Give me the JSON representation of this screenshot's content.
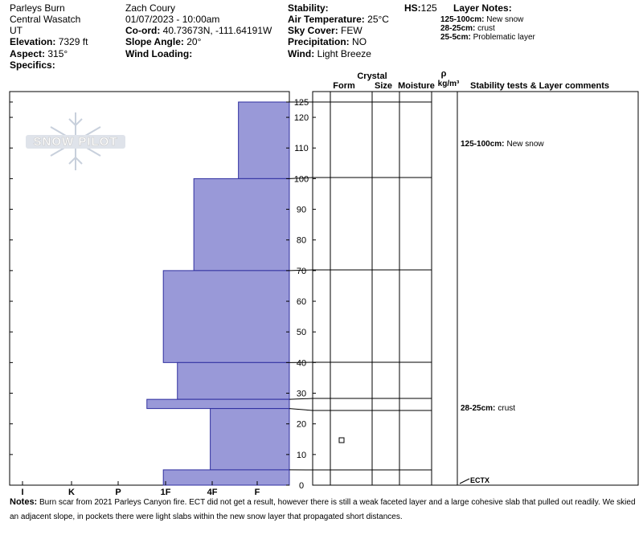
{
  "header": {
    "col1": {
      "site": "Parleys Burn",
      "range": "Central Wasatch",
      "state": "UT",
      "elevation_label": "Elevation:",
      "elevation_value": "7329 ft",
      "aspect_label": "Aspect:",
      "aspect_value": "315°",
      "specifics_label": "Specifics:"
    },
    "col2": {
      "observer": "Zach Coury",
      "datetime": "01/07/2023 - 10:00am",
      "coord_label": "Co-ord:",
      "coord_value": "40.73673N, -111.64191W",
      "slope_label": "Slope Angle:",
      "slope_value": "20°",
      "wind_loading_label": "Wind Loading:"
    },
    "col3": {
      "stability_label": "Stability:",
      "air_temp_label": "Air Temperature:",
      "air_temp_value": "25°C",
      "sky_label": "Sky Cover:",
      "sky_value": "FEW",
      "precip_label": "Precipitation:",
      "precip_value": "NO",
      "wind_label": "Wind:",
      "wind_value": "Light Breeze"
    },
    "hs_label": "HS:",
    "hs_value": "125",
    "layer_notes_title": "Layer Notes:",
    "layer_notes": [
      {
        "range": "125-100cm:",
        "text": "New snow"
      },
      {
        "range": "28-25cm:",
        "text": "crust"
      },
      {
        "range": "25-5cm:",
        "text": "Problematic layer"
      }
    ]
  },
  "logo_text": "SNOW PILOT",
  "table_headers": {
    "crystal": "Crystal",
    "form": "Form",
    "size": "Size",
    "moisture": "Moisture",
    "rho": "ρ",
    "density_unit": "kg/m³",
    "stability_comments": "Stability tests & Layer comments"
  },
  "side_comments": [
    {
      "range": "125-100cm:",
      "text": "New snow"
    },
    {
      "range": "28-25cm:",
      "text": "crust"
    }
  ],
  "test_result": "ECTX",
  "notes_label": "Notes:",
  "notes_text": "Burn scar from 2021 Parleys Canyon fire. ECT did not get a result, however there is still a weak faceted layer and a large cohesive slab that pulled out readily. We skied an adjacent slope, in pockets there were light slabs within the new snow layer that propagated short distances.",
  "chart_data": {
    "type": "bar",
    "orientation": "horizontal",
    "x_categories": [
      "I",
      "K",
      "P",
      "1F",
      "4F",
      "F"
    ],
    "y_label_unit": "cm",
    "ylim": [
      0,
      128
    ],
    "y_ticks": [
      0,
      10,
      20,
      30,
      40,
      50,
      60,
      70,
      80,
      90,
      100,
      110,
      120,
      125
    ],
    "hardness_scale_note": "x value = position on hand hardness scale: I=5, K=4, P=3, 1F=2, 4F=1, F=0",
    "layers": [
      {
        "top": 125,
        "bottom": 100,
        "hardness_value": 0.4
      },
      {
        "top": 100,
        "bottom": 70,
        "hardness_value": 1.35
      },
      {
        "top": 70,
        "bottom": 40,
        "hardness_value": 2.0
      },
      {
        "top": 40,
        "bottom": 28,
        "hardness_value": 1.7
      },
      {
        "top": 28,
        "bottom": 25,
        "hardness_value": 2.35
      },
      {
        "top": 25,
        "bottom": 5,
        "hardness_value": 1.0
      },
      {
        "top": 5,
        "bottom": 0,
        "hardness_value": 2.0
      }
    ],
    "layer_boundaries": [
      125,
      100,
      70,
      40,
      28,
      25,
      5
    ],
    "crystal_symbols": [
      {
        "depth": 15,
        "symbol": "square"
      }
    ],
    "colors": {
      "bar_fill": "#9999d8",
      "bar_stroke": "#3030a0",
      "logo": "#c8d0dc"
    }
  }
}
